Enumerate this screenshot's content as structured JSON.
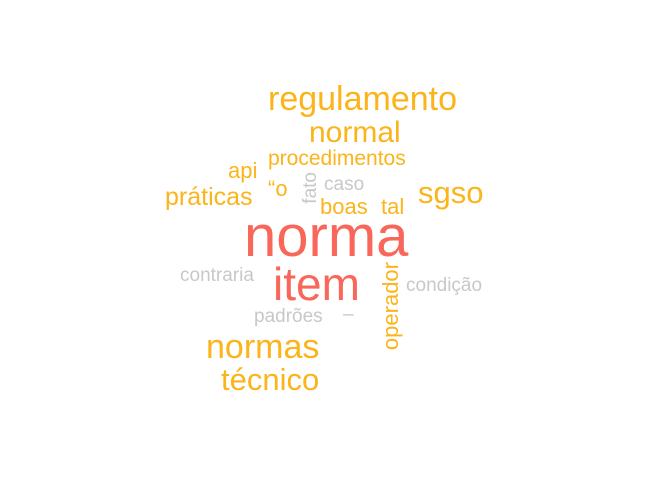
{
  "colors": {
    "top": "#f8675a",
    "mid": "#fbb41a",
    "low": "#c8c8c8"
  },
  "words": {
    "norma": "norma",
    "item": "item",
    "regulamento": "regulamento",
    "normal": "normal",
    "normas": "normas",
    "tecnico": "técnico",
    "sgso": "sgso",
    "procedimentos": "procedimentos",
    "praticas": "práticas",
    "api": "api",
    "o_quote": "“o",
    "boas": "boas",
    "tal": "tal",
    "operador": "operador",
    "fato": "fato",
    "caso": "caso",
    "contraria": "contraria",
    "condicao": "condição",
    "padroes": "padrões",
    "dash": "–"
  }
}
